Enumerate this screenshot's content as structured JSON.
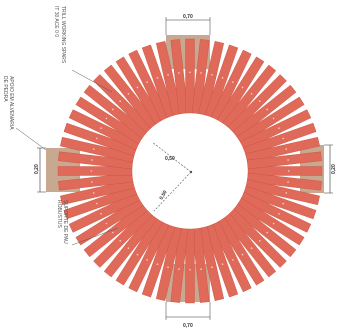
{
  "colors": {
    "plank": "#e06a5a",
    "plank_stroke": "#c8513f",
    "pad": "#c9a892",
    "line": "#555555",
    "dim_box": "#ffffff",
    "background": "#ffffff"
  },
  "plank_count": 56,
  "callouts": {
    "top_note_line1": "TRILL WORKING SPARS",
    "top_note_line2": "IT 30 ACE 0 0",
    "left_note_line1": "APOIO EM ALVENARIA",
    "left_note_line2": "DE PEDRA",
    "bottom_left_line1": "SUPORTE DE PAU",
    "bottom_left_line2": "ROBUSTUS"
  },
  "dimensions": {
    "top_width": "0,70",
    "bottom_width": "0,70",
    "left_height": "0,20",
    "right_height": "0,20",
    "radius_upper": "0,50",
    "radius_lower": "0,50"
  }
}
